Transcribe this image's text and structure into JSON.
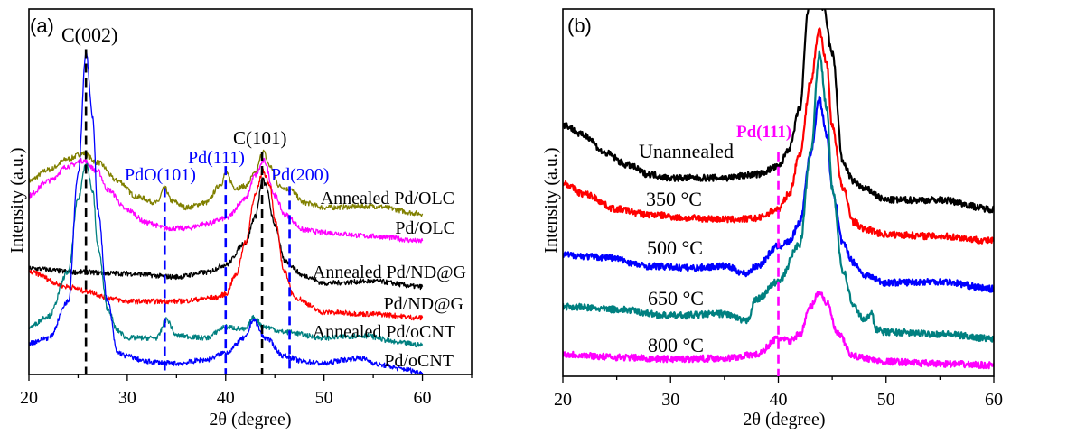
{
  "chart_data": [
    {
      "type": "line",
      "panel_label": "(a)",
      "xlabel": "2θ (degree)",
      "ylabel": "Intensity (a.u.)",
      "xlim": [
        20,
        65
      ],
      "xticks": [
        20,
        30,
        40,
        50,
        60
      ],
      "yticks": [],
      "grid": false,
      "legend": "inline labels at right end of curves",
      "series": [
        {
          "name": "Annealed Pd/OLC",
          "color": "#808000",
          "x": [
            20,
            22,
            24,
            25.5,
            27,
            29,
            31,
            33,
            33.8,
            34.5,
            36,
            38,
            39.5,
            40,
            41,
            42,
            43,
            43.8,
            44.5,
            45.5,
            46.5,
            48,
            50,
            55,
            60
          ],
          "y": [
            53,
            56,
            59,
            60.5,
            58,
            53,
            48.6,
            47,
            51,
            47.5,
            45.7,
            47,
            52,
            55,
            51,
            51.5,
            55,
            61,
            57,
            51.5,
            50.6,
            47,
            45.7,
            46,
            44
          ]
        },
        {
          "name": "Pd/OLC",
          "color": "#ff00ff",
          "x": [
            20,
            22,
            24,
            25.5,
            27,
            28,
            30,
            32,
            34,
            36,
            38,
            40,
            42,
            43,
            43.9,
            45,
            46,
            48,
            50,
            55,
            60
          ],
          "y": [
            49,
            53,
            57,
            58.5,
            55.6,
            50.6,
            45,
            41.5,
            40,
            40,
            41.2,
            42.7,
            48,
            54.5,
            58.5,
            49,
            43.7,
            39.5,
            38.8,
            37.8,
            36.5
          ]
        },
        {
          "name": "Annealed Pd/ND@G",
          "color": "#000000",
          "x": [
            20,
            25,
            30,
            35,
            38,
            40,
            42,
            43,
            43.8,
            44,
            45,
            46,
            48,
            50,
            55,
            60
          ],
          "y": [
            29,
            28,
            27.6,
            26.7,
            27.9,
            30,
            36,
            43.2,
            53.6,
            52,
            41,
            31,
            27,
            25,
            25.5,
            24
          ]
        },
        {
          "name": "Pd/ND@G",
          "color": "#ff0000",
          "x": [
            20,
            24,
            26,
            28,
            30,
            35,
            39,
            40,
            41,
            42,
            43,
            43.8,
            44.5,
            45,
            46,
            47,
            50,
            55,
            60
          ],
          "y": [
            28,
            24,
            22.7,
            21,
            20,
            20,
            21,
            22,
            27,
            36,
            49,
            55.6,
            52,
            42,
            28,
            21,
            17,
            16.5,
            15.5
          ]
        },
        {
          "name": "Annealed Pd/oCNT",
          "color": "#008080",
          "x": [
            20,
            22,
            24,
            25,
            25.8,
            26.5,
            27,
            28,
            29,
            30,
            33,
            34,
            35,
            38,
            40,
            42,
            42.8,
            44,
            46,
            50,
            54,
            58,
            60
          ],
          "y": [
            13,
            16,
            28,
            48,
            58,
            50,
            35,
            18,
            12,
            10,
            10,
            15,
            10.6,
            10,
            13,
            12.3,
            15.5,
            13,
            11.6,
            10,
            10.6,
            8.6,
            8
          ]
        },
        {
          "name": "Pd/oCNT",
          "color": "#0000ff",
          "x": [
            20,
            22,
            24,
            25,
            25.8,
            26.5,
            27,
            28,
            29,
            30,
            32,
            35,
            38,
            40,
            42,
            42.8,
            44,
            46,
            48,
            50,
            52,
            53.5,
            56,
            58,
            60
          ],
          "y": [
            8.6,
            10,
            20,
            55,
            88,
            70,
            45,
            20,
            6,
            5,
            3.5,
            3,
            4,
            6,
            10,
            15,
            10,
            5,
            3.5,
            3,
            4,
            4.5,
            2.5,
            1.5,
            0.5
          ]
        }
      ],
      "annotations": [
        {
          "text": "C(002)",
          "color": "#000000",
          "x": 25.8
        },
        {
          "text": "PdO(101)",
          "color": "#0000ff",
          "x": 33.8
        },
        {
          "text": "Pd(111)",
          "color": "#0000ff",
          "x": 40
        },
        {
          "text": "C(101)",
          "color": "#000000",
          "x": 43.7
        },
        {
          "text": "Pd(200)",
          "color": "#0000ff",
          "x": 46.5
        }
      ],
      "reference_lines": [
        {
          "x": 25.8,
          "color": "#000000",
          "style": "dashed"
        },
        {
          "x": 33.8,
          "color": "#0000ff",
          "style": "dashed"
        },
        {
          "x": 40,
          "color": "#0000ff",
          "style": "dashed"
        },
        {
          "x": 43.7,
          "color": "#000000",
          "style": "dashed"
        },
        {
          "x": 46.5,
          "color": "#0000ff",
          "style": "dashed"
        }
      ]
    },
    {
      "type": "line",
      "panel_label": "(b)",
      "xlabel": "2θ (degree)",
      "ylabel": "Intensity (a.u.)",
      "xlim": [
        20,
        60
      ],
      "xticks": [
        20,
        30,
        40,
        50,
        60
      ],
      "yticks": [],
      "grid": false,
      "legend": "inline labels left of peak",
      "series": [
        {
          "name": "Unannealed",
          "color": "#000000",
          "x": [
            20,
            22,
            24,
            26,
            28,
            30,
            32,
            35,
            38,
            40,
            41,
            42,
            42.8,
            43.5,
            44.2,
            45,
            46,
            47,
            48,
            50,
            55,
            60
          ],
          "y": [
            68.5,
            65.6,
            60.7,
            57.5,
            55,
            54,
            54,
            54,
            55,
            57,
            62,
            73,
            100,
            105,
            100,
            88,
            58,
            53,
            51,
            48,
            48,
            45.5
          ]
        },
        {
          "name": "350 °C",
          "color": "#ff0000",
          "x": [
            20,
            22,
            25,
            28,
            32,
            36,
            38,
            40,
            41,
            42,
            43,
            43.8,
            44.5,
            45,
            46,
            47,
            48,
            50,
            55,
            60
          ],
          "y": [
            52.6,
            49.6,
            45.5,
            44,
            43,
            42.7,
            43,
            45.5,
            49.6,
            60.7,
            80,
            94.3,
            85,
            68,
            51,
            42,
            40,
            38.6,
            38.1,
            36.9
          ]
        },
        {
          "name": "500 °C",
          "color": "#0000ff",
          "x": [
            20,
            24,
            28,
            32,
            35,
            37,
            38,
            40,
            41,
            42,
            43,
            43.8,
            44.5,
            45,
            46,
            47,
            48,
            50,
            55,
            60
          ],
          "y": [
            33,
            32.4,
            30,
            29.5,
            30,
            28,
            30,
            35.4,
            36.6,
            42,
            60.7,
            75.4,
            65.6,
            51,
            36,
            31,
            27.5,
            25.5,
            25.8,
            23.8
          ]
        },
        {
          "name": "650 °C",
          "color": "#008080",
          "x": [
            20,
            25,
            30,
            35,
            37,
            38,
            40,
            42,
            43,
            43.8,
            44.5,
            45,
            46,
            47,
            48,
            48.7,
            49,
            50,
            55,
            60
          ],
          "y": [
            19,
            18.2,
            16.5,
            17,
            15,
            21,
            25.8,
            36,
            60.7,
            87.7,
            73,
            51,
            28.7,
            19,
            15.2,
            17.7,
            12.8,
            12,
            11.5,
            10.3
          ]
        },
        {
          "name": "800 °C",
          "color": "#ff00ff",
          "x": [
            20,
            25,
            30,
            35,
            38,
            40,
            41,
            42,
            43,
            43.8,
            44.5,
            45.5,
            47,
            50,
            55,
            60
          ],
          "y": [
            6,
            5.2,
            4.7,
            4.9,
            5.9,
            10.3,
            9.6,
            11.5,
            19,
            23,
            20,
            11.5,
            5.4,
            4,
            3.4,
            3
          ]
        }
      ],
      "annotations": [
        {
          "text": "Pd(111)",
          "color": "#ff00ff",
          "x": 40
        }
      ],
      "reference_lines": [
        {
          "x": 40,
          "color": "#ff00ff",
          "style": "dashed"
        }
      ]
    }
  ]
}
